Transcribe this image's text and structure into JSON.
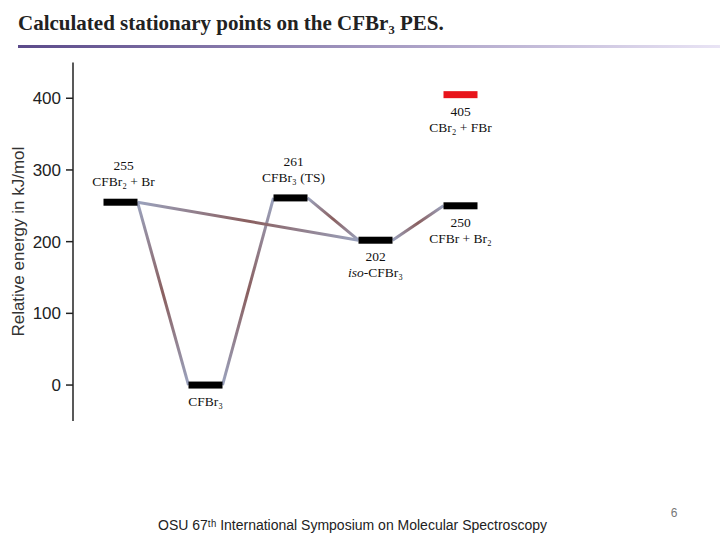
{
  "chart_data": {
    "type": "energy_level",
    "title": "Calculated stationary points on the CFBr₃ PES.",
    "y_label": "Relative energy in kJ/mol",
    "footer": "OSU 67ᵗʰ International Symposium on Molecular Spectroscopy",
    "page_number": "6",
    "ylim": [
      -50,
      450
    ],
    "yticks": [
      0,
      100,
      200,
      300,
      400
    ],
    "xlim": [
      -0.5,
      5
    ],
    "tick_labels": "y",
    "levels": [
      {
        "label": "CFBr₂ + Br",
        "value": 255,
        "x": 0,
        "color": "#000000",
        "data_labels": true
      },
      {
        "label": "CFBr₃",
        "value": 0,
        "x": 1,
        "color": "#000000",
        "data_labels": false
      },
      {
        "label": "CFBr₃ (TS)",
        "value": 261,
        "x": 2,
        "color": "#000000",
        "data_labels": true
      },
      {
        "label": "iso-CFBr₃",
        "value": 202,
        "x": 3,
        "color": "#000000",
        "data_labels": true
      },
      {
        "label": "CFBr + Br₂",
        "value": 250,
        "x": 4,
        "color": "#000000",
        "data_labels": true
      },
      {
        "label": "CBr₂ + FBr",
        "value": 405,
        "x": 4,
        "color": "#e8141b",
        "data_labels": true
      }
    ],
    "connections": [
      [
        0,
        1
      ],
      [
        1,
        2
      ],
      [
        2,
        3
      ],
      [
        0,
        3
      ],
      [
        3,
        4
      ]
    ]
  }
}
